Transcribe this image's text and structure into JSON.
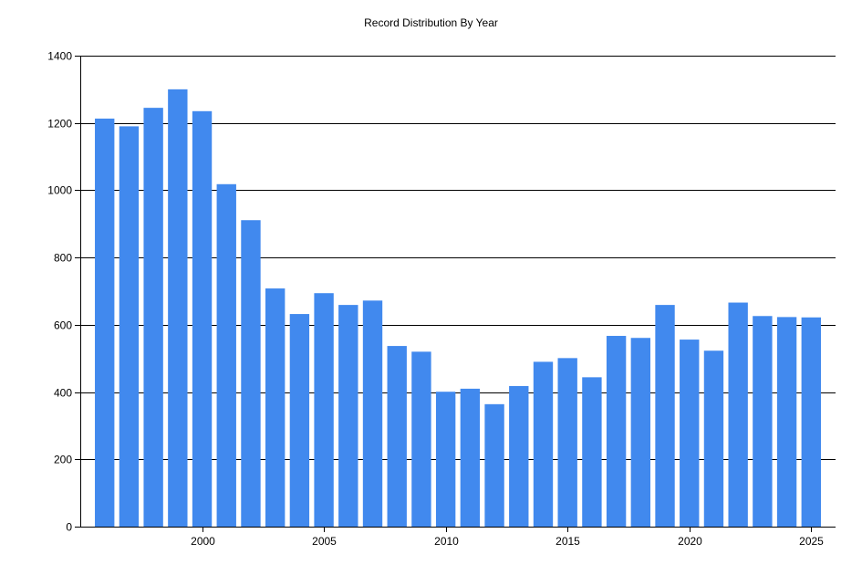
{
  "chart_data": {
    "type": "bar",
    "title": "Record Distribution By Year",
    "xlabel": "",
    "ylabel": "",
    "x": [
      1996,
      1997,
      1998,
      1999,
      2000,
      2001,
      2002,
      2003,
      2004,
      2005,
      2006,
      2007,
      2008,
      2009,
      2010,
      2011,
      2012,
      2013,
      2014,
      2015,
      2016,
      2017,
      2018,
      2019,
      2020,
      2021,
      2022,
      2023,
      2024,
      2025
    ],
    "values": [
      1213,
      1190,
      1245,
      1300,
      1235,
      1018,
      911,
      708,
      632,
      694,
      659,
      672,
      537,
      520,
      401,
      410,
      364,
      418,
      490,
      501,
      444,
      567,
      561,
      659,
      556,
      523,
      666,
      626,
      623,
      622
    ],
    "xlim": [
      1995,
      2026
    ],
    "ylim": [
      0,
      1400
    ],
    "x_ticks": [
      2000,
      2005,
      2010,
      2015,
      2020,
      2025
    ],
    "y_ticks": [
      0,
      200,
      400,
      600,
      800,
      1000,
      1200,
      1400
    ],
    "grid": "horizontal",
    "bar_color": "#4189ee",
    "axis_color": "#000000"
  }
}
